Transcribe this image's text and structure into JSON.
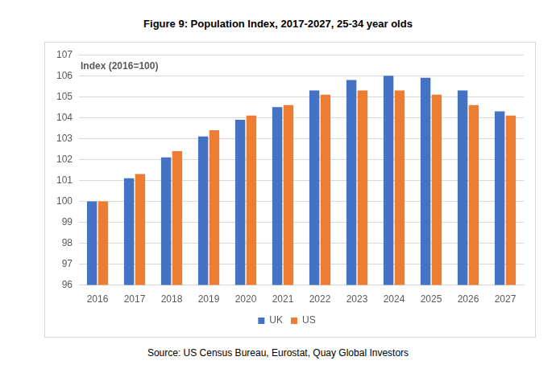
{
  "chart_data": {
    "type": "bar",
    "title": "Figure 9: Population Index, 2017-2027, 25-34 year olds",
    "ylabel": "Index (2016=100)",
    "source": "Source: US Census Bureau, Eurostat, Quay Global Investors",
    "categories": [
      "2016",
      "2017",
      "2018",
      "2019",
      "2020",
      "2021",
      "2022",
      "2023",
      "2024",
      "2025",
      "2026",
      "2027"
    ],
    "series": [
      {
        "name": "UK",
        "color": "#4472c4",
        "values": [
          100,
          101.1,
          102.1,
          103.1,
          103.9,
          104.5,
          105.3,
          105.8,
          106.0,
          105.9,
          105.3,
          104.3
        ]
      },
      {
        "name": "US",
        "color": "#ed7d31",
        "values": [
          100,
          101.3,
          102.4,
          103.4,
          104.1,
          104.6,
          105.1,
          105.3,
          105.3,
          105.1,
          104.6,
          104.1
        ]
      }
    ],
    "ylim": [
      96,
      107
    ],
    "yticks": [
      96,
      97,
      98,
      99,
      100,
      101,
      102,
      103,
      104,
      105,
      106,
      107
    ],
    "grid": true,
    "legend": "bottom"
  }
}
